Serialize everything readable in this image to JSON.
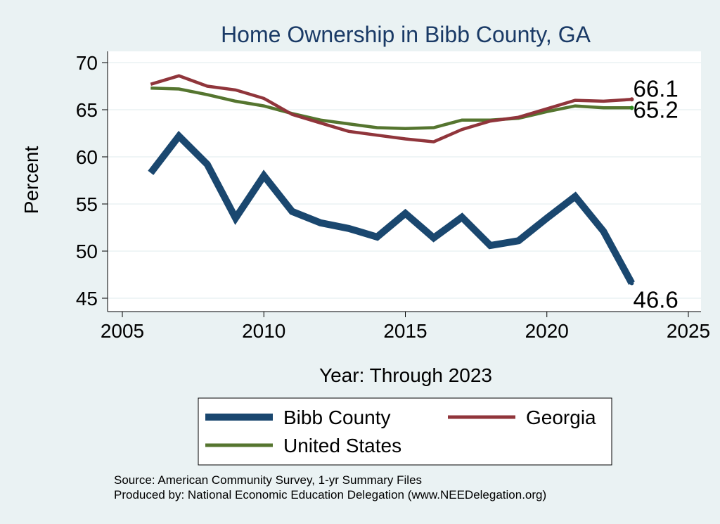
{
  "chart_data": {
    "type": "line",
    "title": "Home Ownership in Bibb County, GA",
    "xlabel": "Year: Through 2023",
    "ylabel": "Percent",
    "xlim": [
      2005,
      2025
    ],
    "ylim": [
      45,
      70
    ],
    "xticks": [
      "2005",
      "2010",
      "2015",
      "2020",
      "2025"
    ],
    "yticks": [
      "45",
      "50",
      "55",
      "60",
      "65",
      "70"
    ],
    "grid": "horizontal",
    "legend_position": "bottom",
    "colors": {
      "bibb": "#1a476f",
      "georgia": "#90353b",
      "us": "#55752f",
      "plot_bg": "#ffffff",
      "page_bg": "#eaf2f3",
      "title": "#1a3a66"
    },
    "series": [
      {
        "name": "Bibb County",
        "x": [
          2006,
          2007,
          2008,
          2009,
          2010,
          2011,
          2012,
          2013,
          2014,
          2015,
          2016,
          2017,
          2018,
          2019,
          2020,
          2021,
          2022,
          2023
        ],
        "values": [
          58.3,
          62.2,
          59.2,
          53.5,
          58.0,
          54.2,
          53.0,
          52.4,
          51.5,
          54.0,
          51.4,
          53.6,
          50.6,
          51.1,
          53.5,
          55.8,
          52.1,
          46.6
        ],
        "end_label": "46.6"
      },
      {
        "name": "Georgia",
        "x": [
          2006,
          2007,
          2008,
          2009,
          2010,
          2011,
          2012,
          2013,
          2014,
          2015,
          2016,
          2017,
          2018,
          2019,
          2020,
          2021,
          2022,
          2023
        ],
        "values": [
          67.7,
          68.6,
          67.5,
          67.1,
          66.2,
          64.5,
          63.6,
          62.7,
          62.3,
          61.9,
          61.6,
          62.9,
          63.8,
          64.2,
          65.1,
          66.0,
          65.9,
          66.1
        ],
        "end_label": "66.1"
      },
      {
        "name": "United States",
        "x": [
          2006,
          2007,
          2008,
          2009,
          2010,
          2011,
          2012,
          2013,
          2014,
          2015,
          2016,
          2017,
          2018,
          2019,
          2020,
          2021,
          2022,
          2023
        ],
        "values": [
          67.3,
          67.2,
          66.6,
          65.9,
          65.4,
          64.6,
          63.9,
          63.5,
          63.1,
          63.0,
          63.1,
          63.9,
          63.9,
          64.1,
          64.8,
          65.4,
          65.2,
          65.2
        ],
        "end_label": "65.2"
      }
    ]
  },
  "footer": {
    "source": "Source: American Community Survey, 1-yr Summary Files",
    "produced": "Produced by: National Economic Education Delegation (www.NEEDelegation.org)"
  }
}
